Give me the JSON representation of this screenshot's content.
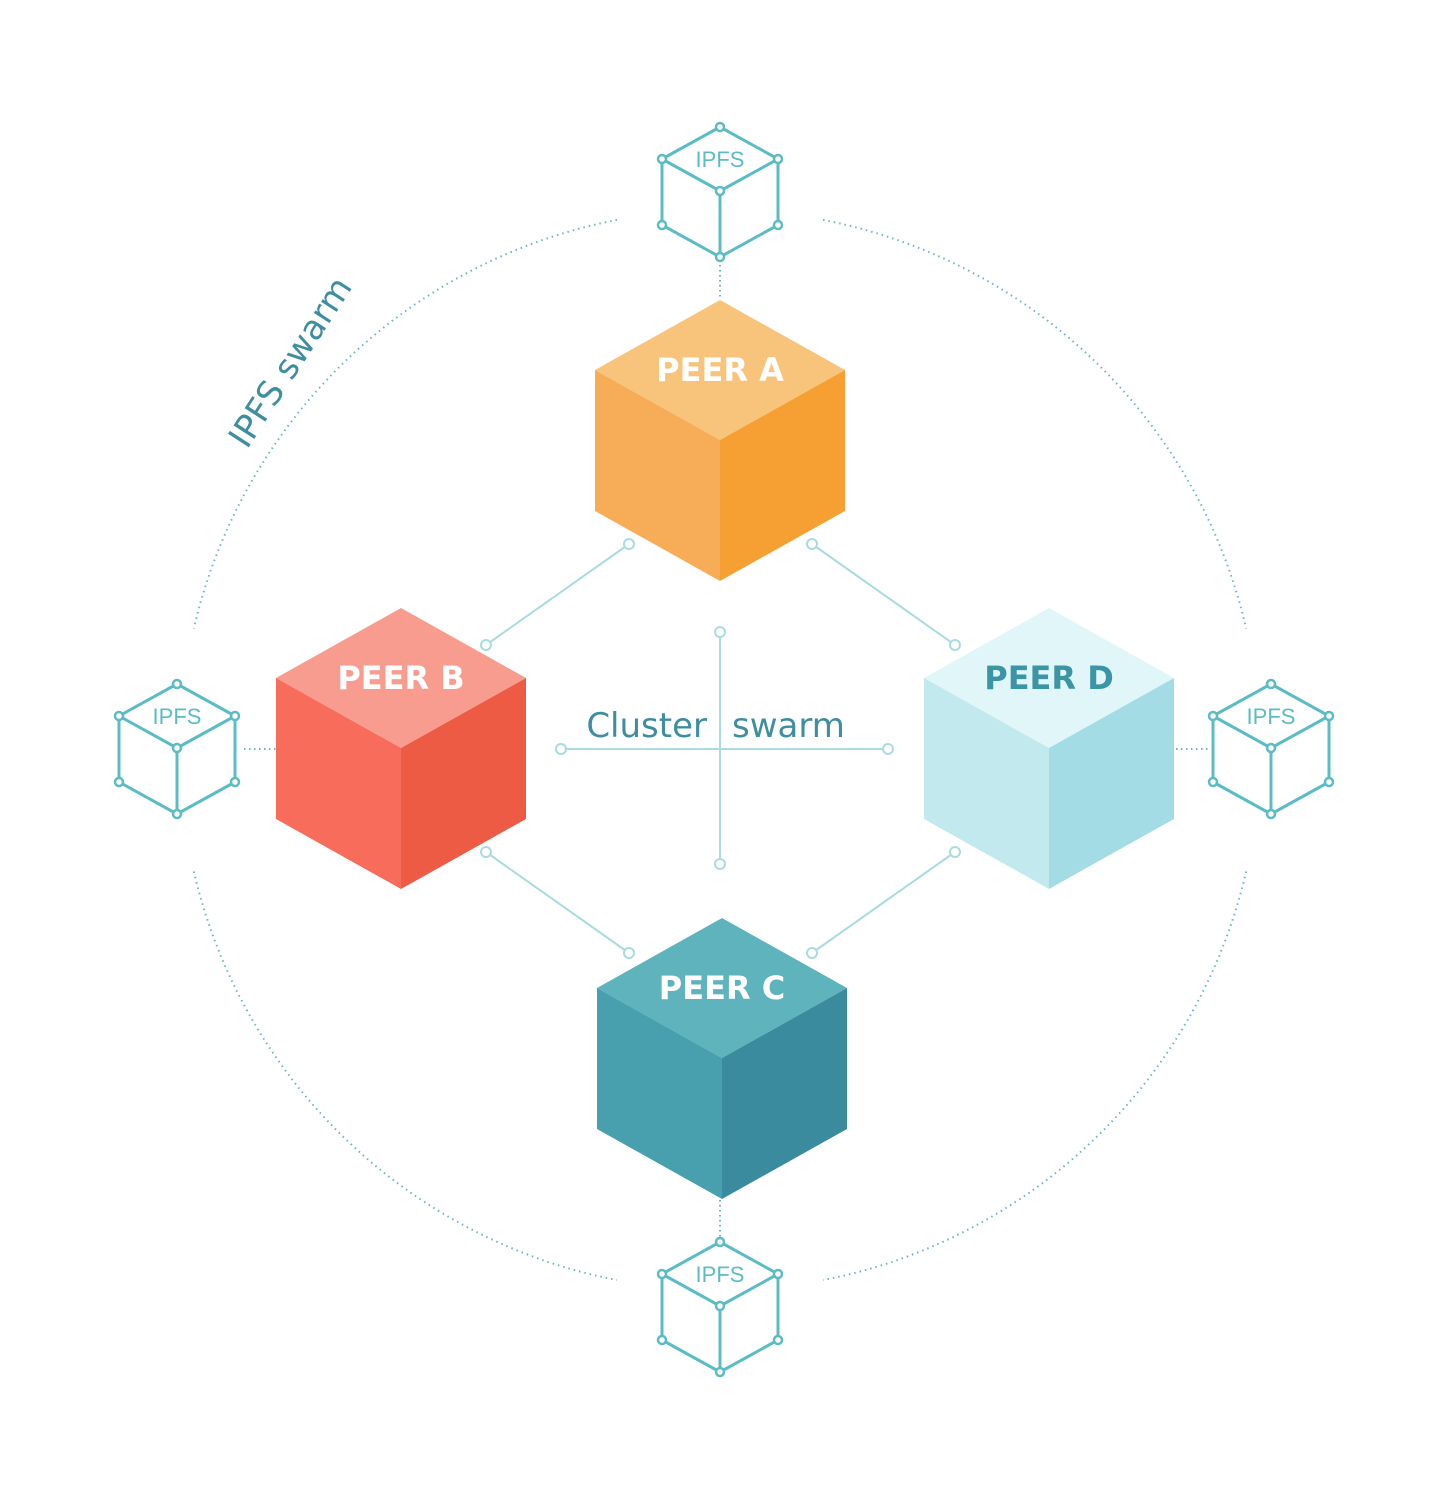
{
  "diagram": {
    "swarm_label": "IPFS swarm",
    "cluster_label": {
      "left": "Cluster",
      "right": "swarm"
    },
    "peers": [
      {
        "id": "a",
        "label": "PEER A",
        "colors": {
          "top": "#f8c37a",
          "left": "#f7ad58",
          "right": "#f6a033",
          "text": "#ffffff"
        }
      },
      {
        "id": "b",
        "label": "PEER B",
        "colors": {
          "top": "#f79c8f",
          "left": "#f76c5b",
          "right": "#ee5b44",
          "text": "#ffffff"
        }
      },
      {
        "id": "c",
        "label": "PEER C",
        "colors": {
          "top": "#5fb3bd",
          "left": "#48a0ae",
          "right": "#3b8b9e",
          "text": "#ffffff"
        }
      },
      {
        "id": "d",
        "label": "PEER D",
        "colors": {
          "top": "#e0f6f9",
          "left": "#c2e9ee",
          "right": "#a3dce4",
          "text": "#3b95a5"
        }
      }
    ],
    "ipfs_nodes": [
      {
        "id": "top",
        "label": "IPFS"
      },
      {
        "id": "left",
        "label": "IPFS"
      },
      {
        "id": "right",
        "label": "IPFS"
      },
      {
        "id": "bottom",
        "label": "IPFS"
      }
    ],
    "colors": {
      "outline": "#5bbcc4",
      "dotted_ring": "#6fb4c0",
      "connector": "#a9dbe1"
    }
  }
}
